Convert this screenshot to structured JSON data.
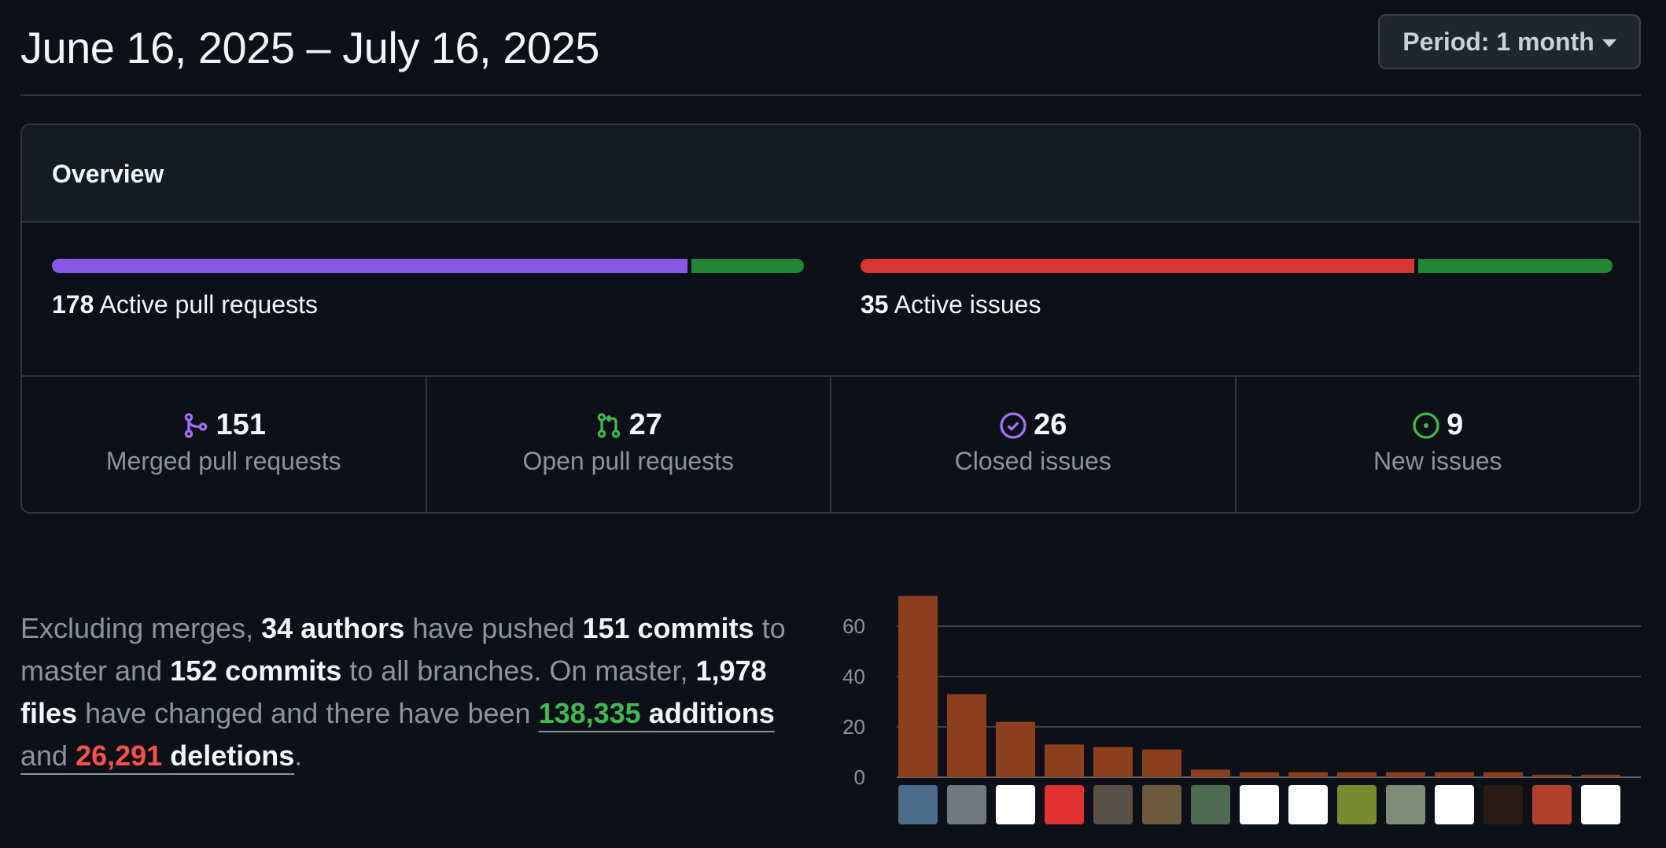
{
  "header": {
    "date_range": "June 16, 2025 – July 16, 2025",
    "period_label": "Period: 1 month"
  },
  "overview": {
    "title": "Overview",
    "pull_requests": {
      "count": "178",
      "label": "Active pull requests",
      "merged_fraction": 0.85,
      "open_fraction": 0.15
    },
    "issues": {
      "count": "35",
      "label": "Active issues",
      "closed_fraction": 0.74,
      "new_fraction": 0.26
    },
    "stats": [
      {
        "value": "151",
        "label": "Merged pull requests",
        "icon": "merge-icon",
        "color": "#a371f7"
      },
      {
        "value": "27",
        "label": "Open pull requests",
        "icon": "pull-request-icon",
        "color": "#3fb950"
      },
      {
        "value": "26",
        "label": "Closed issues",
        "icon": "check-circle-icon",
        "color": "#a371f7"
      },
      {
        "value": "9",
        "label": "New issues",
        "icon": "issue-opened-icon",
        "color": "#3fb950"
      }
    ]
  },
  "summary": {
    "p1": "Excluding merges,",
    "authors": "34 authors",
    "p2": "have pushed",
    "commits_master": "151 commits",
    "p3": "to master and",
    "commits_all": "152 commits",
    "p4": "to all branches. On master,",
    "files": "1,978 files",
    "p5": "have changed and there have been",
    "additions_num": "138,335",
    "additions_word": "additions",
    "p6": "and",
    "deletions_num": "26,291",
    "deletions_word": "deletions",
    "p7": "."
  },
  "colors": {
    "merged": "#8957e5",
    "open": "#238636",
    "closed_issue": "#da3633",
    "bar": "#8b3f1d"
  },
  "chart_data": {
    "type": "bar",
    "y_ticks": [
      0,
      20,
      40,
      60
    ],
    "ylim": [
      0,
      75
    ],
    "values": [
      72,
      33,
      22,
      13,
      12,
      11,
      3,
      2,
      2,
      2,
      2,
      2,
      2,
      1,
      1
    ]
  },
  "avatars": [
    "avatar-1",
    "avatar-2",
    "avatar-3",
    "avatar-4",
    "avatar-5",
    "avatar-6",
    "avatar-7",
    "avatar-8",
    "avatar-9",
    "avatar-10",
    "avatar-11",
    "avatar-12",
    "avatar-13",
    "avatar-14",
    "avatar-15"
  ]
}
